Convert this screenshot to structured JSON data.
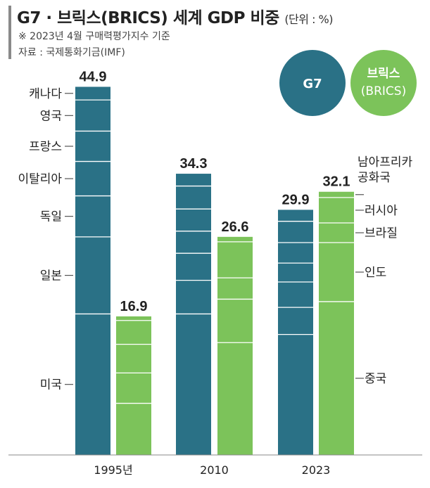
{
  "title": "G7 · 브릭스(BRICS) 세계 GDP 비중",
  "unit": "(단위 : %)",
  "notes": [
    "※ 2023년 4월 구매력평가지수 기준",
    "자료 : 국제통화기금(IMF)"
  ],
  "colors": {
    "g7": "#2a7186",
    "brics": "#7cc35a"
  },
  "chart_data": {
    "type": "bar",
    "categories": [
      "1995년",
      "2010",
      "2023"
    ],
    "ylim": [
      0,
      50
    ],
    "series": [
      {
        "name": "G7",
        "values": [
          44.9,
          34.3,
          29.9
        ]
      },
      {
        "name": "브릭스\n(BRICS)",
        "values": [
          16.9,
          26.6,
          32.1
        ]
      }
    ],
    "g7_members": [
      "캐나다",
      "영국",
      "프랑스",
      "이탈리아",
      "독일",
      "일본",
      "미국"
    ],
    "brics_members": [
      "남아프리카\n공화국",
      "러시아",
      "브라질",
      "인도",
      "중국"
    ],
    "g7_1995_boundaries": [
      43.3,
      39.5,
      35.8,
      31.6,
      26.6,
      17.2
    ],
    "g7_2010_boundaries": [
      32.8,
      30.0,
      27.3,
      24.6,
      21.3,
      17.2
    ],
    "g7_2023_boundaries": [
      28.5,
      25.9,
      23.4,
      21.1,
      18.0,
      14.7
    ],
    "brics_1995_boundaries": [
      16.4,
      13.5,
      10.0,
      6.3
    ],
    "brics_2010_boundaries": [
      26.0,
      21.6,
      19.0,
      13.7
    ],
    "brics_2023_boundaries": [
      31.4,
      28.3,
      25.9,
      18.7
    ],
    "legend_position": "top-right"
  }
}
